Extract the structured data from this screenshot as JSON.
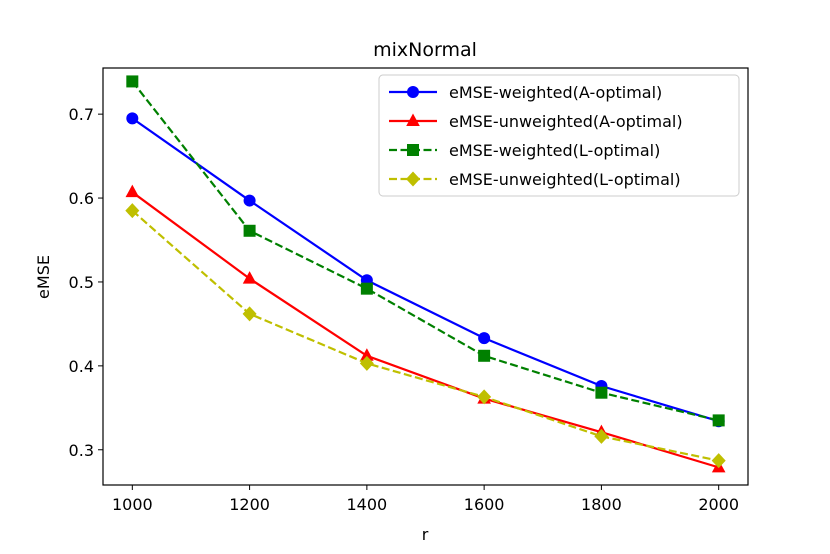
{
  "chart_data": {
    "type": "line",
    "title": "mixNormal",
    "xlabel": "r",
    "ylabel": "eMSE",
    "x": [
      1000,
      1200,
      1400,
      1600,
      1800,
      2000
    ],
    "xlim": [
      950,
      2050
    ],
    "ylim": [
      0.258,
      0.755
    ],
    "xticks": [
      "1000",
      "1200",
      "1400",
      "1600",
      "1800",
      "2000"
    ],
    "yticks": [
      "0.3",
      "0.4",
      "0.5",
      "0.6",
      "0.7"
    ],
    "grid": false,
    "legend_position": "top-right",
    "series": [
      {
        "name": "eMSE-weighted(A-optimal)",
        "color": "#0000ff",
        "marker": "circle",
        "linestyle": "solid",
        "values": [
          0.695,
          0.597,
          0.502,
          0.433,
          0.376,
          0.334
        ]
      },
      {
        "name": "eMSE-unweighted(A-optimal)",
        "color": "#ff0000",
        "marker": "triangle",
        "linestyle": "solid",
        "values": [
          0.607,
          0.504,
          0.412,
          0.361,
          0.321,
          0.279
        ]
      },
      {
        "name": "eMSE-weighted(L-optimal)",
        "color": "#008000",
        "marker": "square",
        "linestyle": "dashed",
        "values": [
          0.739,
          0.561,
          0.492,
          0.412,
          0.368,
          0.335
        ]
      },
      {
        "name": "eMSE-unweighted(L-optimal)",
        "color": "#bfbf00",
        "marker": "diamond",
        "linestyle": "dashed",
        "values": [
          0.585,
          0.462,
          0.403,
          0.363,
          0.316,
          0.287
        ]
      }
    ]
  }
}
